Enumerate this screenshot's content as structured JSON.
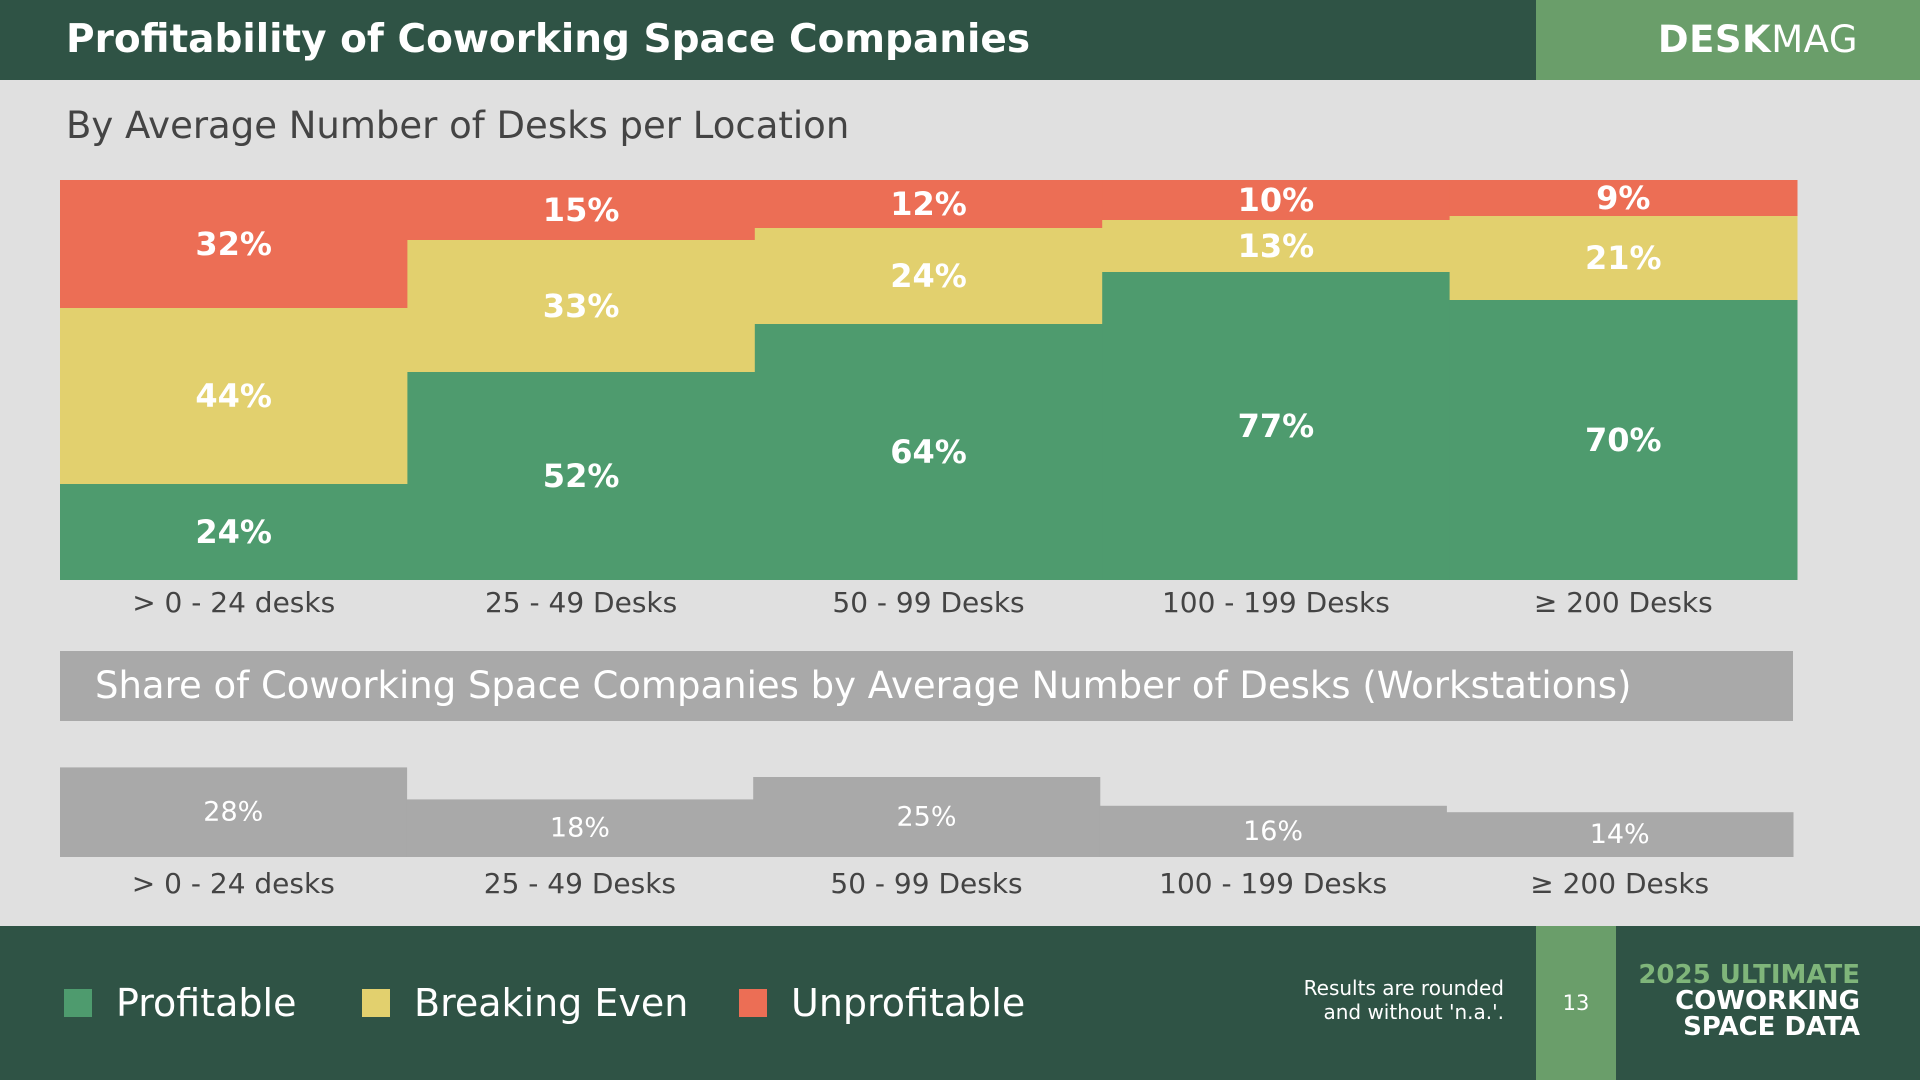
{
  "header": {
    "title": "Profitability of Coworking Space Companies",
    "brand_bold": "DESK",
    "brand_light": "MAG"
  },
  "subtitle": "By Average Number of Desks per Location",
  "chart_data": [
    {
      "type": "bar",
      "stacked": true,
      "categories": [
        "> 0 - 24 desks",
        "25 - 49 Desks",
        "50 - 99 Desks",
        "100 - 199 Desks",
        "≥ 200 Desks"
      ],
      "series": [
        {
          "name": "Profitable",
          "color": "#4e9b6e",
          "values": [
            24,
            52,
            64,
            77,
            70
          ]
        },
        {
          "name": "Breaking Even",
          "color": "#e2d06e",
          "values": [
            44,
            33,
            24,
            13,
            21
          ]
        },
        {
          "name": "Unprofitable",
          "color": "#ec6e55",
          "values": [
            32,
            15,
            12,
            10,
            9
          ]
        }
      ],
      "ylim": [
        0,
        100
      ],
      "value_suffix": "%",
      "title": "By Average Number of Desks per Location",
      "xlabel": "",
      "ylabel": ""
    },
    {
      "type": "bar",
      "categories": [
        "> 0 - 24 desks",
        "25 - 49 Desks",
        "50 - 99 Desks",
        "100 - 199 Desks",
        "≥ 200 Desks"
      ],
      "values": [
        28,
        18,
        25,
        16,
        14
      ],
      "color": "#a9a9a9",
      "value_suffix": "%",
      "title": "Share of Coworking Space Companies by Average Number of Desks (Workstations)",
      "xlabel": "",
      "ylabel": ""
    }
  ],
  "share_title": "Share of Coworking Space Companies by Average Number of Desks (Workstations)",
  "legend": [
    {
      "label": "Profitable",
      "color": "#4e9b6e"
    },
    {
      "label": "Breaking Even",
      "color": "#e2d06e"
    },
    {
      "label": "Unprofitable",
      "color": "#ec6e55"
    }
  ],
  "footer": {
    "note_line1": "Results are rounded",
    "note_line2": "and without 'n.a.'.",
    "page_number": "13",
    "report_line1": "2025 ULTIMATE",
    "report_line2": "COWORKING",
    "report_line3": "SPACE DATA"
  }
}
